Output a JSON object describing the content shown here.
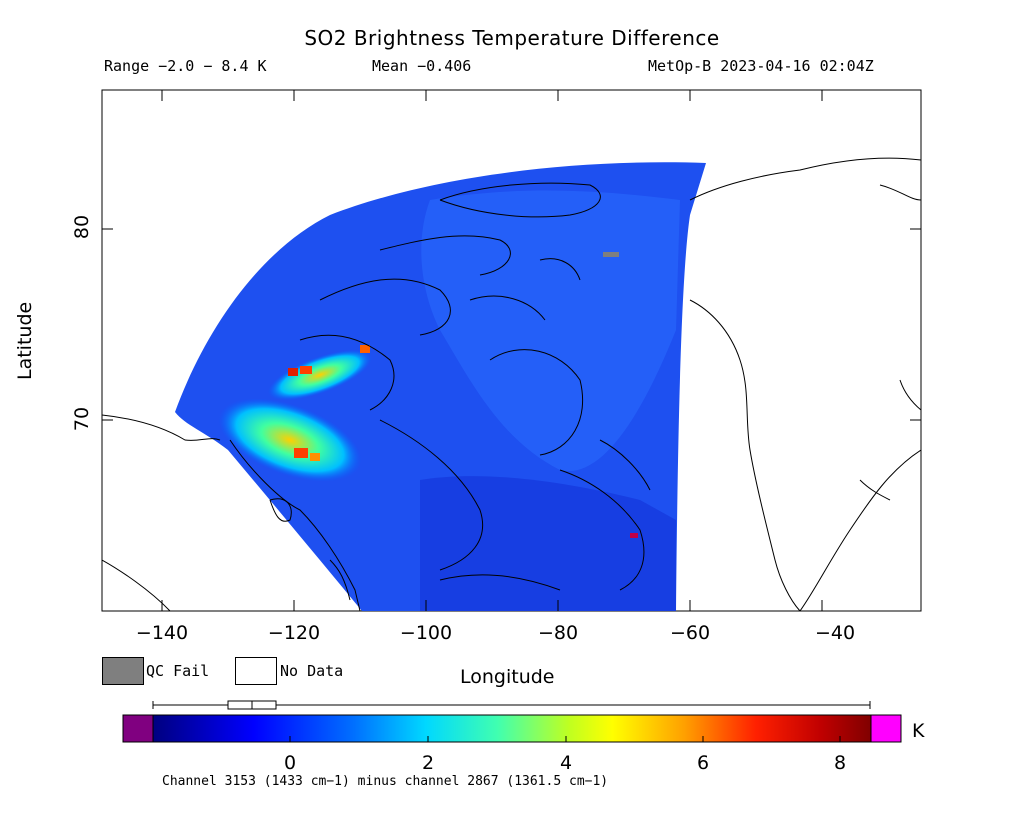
{
  "header": {
    "title": "SO2 Brightness Temperature Difference",
    "range": "Range −2.0 − 8.4 K",
    "mean": "Mean −0.406",
    "satellite": "MetOp-B 2023-04-16 02:04Z"
  },
  "axes": {
    "xlabel": "Longitude",
    "ylabel": "Latitude",
    "xticks": [
      "−140",
      "−120",
      "−100",
      "−80",
      "−60",
      "−40"
    ],
    "yticks": [
      "80",
      "70"
    ]
  },
  "legend": {
    "qc_fail": "QC Fail",
    "no_data": "No Data",
    "qc_fail_color": "#7f7f7f",
    "no_data_color": "#ffffff"
  },
  "colorbar": {
    "ticks": [
      "0",
      "2",
      "4",
      "6",
      "8"
    ],
    "unit": "K",
    "underflow_color": "#800080",
    "overflow_color": "#ff00ff",
    "note": "Channel 3153 (1433 cm−1) minus channel 2867 (1361.5 cm−1)"
  },
  "chart_data": {
    "type": "heatmap",
    "xlim": [
      -150,
      -28
    ],
    "ylim": [
      60,
      87
    ],
    "value_range": [
      -2.0,
      8.4
    ],
    "mean": -0.406,
    "colormap": [
      "#000080",
      "#0000ff",
      "#00c8ff",
      "#00ffc0",
      "#80ff40",
      "#ffff00",
      "#ff9000",
      "#ff2000",
      "#b00000",
      "#800000"
    ]
  }
}
